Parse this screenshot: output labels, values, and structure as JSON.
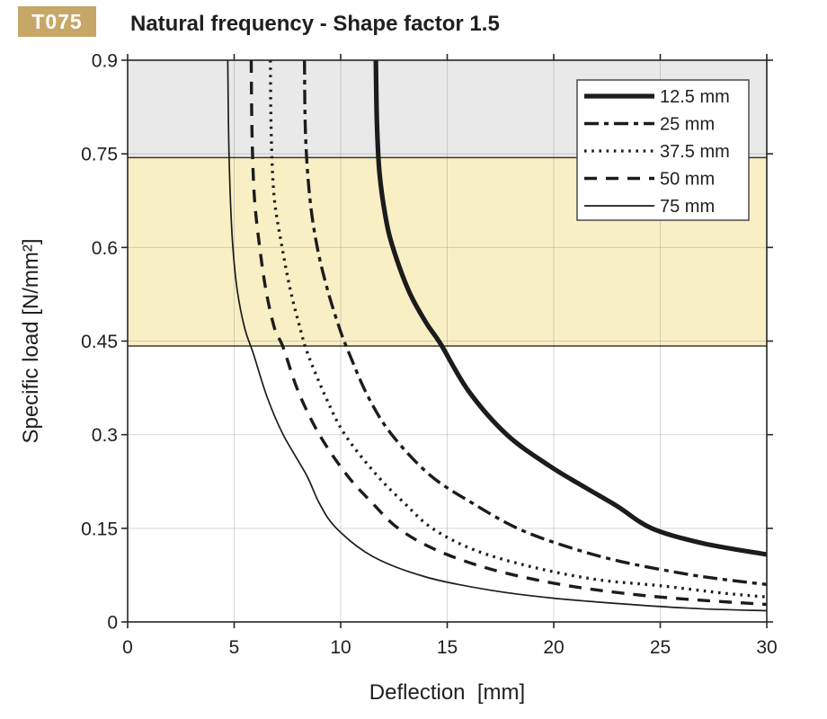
{
  "page": {
    "badge": "T075",
    "badge_color": "#c7a767",
    "title": "Natural frequency - Shape factor 1.5"
  },
  "chart_data": {
    "type": "line",
    "title": "Natural frequency - Shape factor 1.5",
    "xlabel": "Deflection  [mm]",
    "ylabel": "Specific load [N/mm²]",
    "xlim": [
      0,
      30
    ],
    "ylim": [
      0,
      0.9
    ],
    "grid": true,
    "legend_position": "top-right",
    "line_color": "#1c1c1c",
    "x_ticks": [
      0,
      5,
      10,
      15,
      20,
      25,
      30
    ],
    "x_tick_labels": [
      "0",
      "5",
      "10",
      "15",
      "20",
      "25",
      "30"
    ],
    "y_ticks": [
      0,
      0.15,
      0.3,
      0.45,
      0.6,
      0.75,
      0.9
    ],
    "y_tick_labels": [
      "0",
      "0.15",
      "0.3",
      "0.45",
      "0.6",
      "0.75",
      "0.9"
    ],
    "bands": [
      {
        "name": "upper-gray-zone",
        "from": 0.744,
        "to": 0.9,
        "color": "#e9e9e9",
        "opacity": 1
      },
      {
        "name": "recommended-load-range",
        "from": 0.442,
        "to": 0.744,
        "color": "#f9efc5",
        "opacity": 1
      }
    ],
    "band_boundary_lines": [
      0.744,
      0.442
    ],
    "series": [
      {
        "name": "12.5 mm",
        "style": "solid-thick",
        "points": [
          [
            11.65,
            0.9
          ],
          [
            11.7,
            0.8
          ],
          [
            11.82,
            0.72
          ],
          [
            12.1,
            0.65
          ],
          [
            12.45,
            0.6
          ],
          [
            13.2,
            0.53
          ],
          [
            14.0,
            0.48
          ],
          [
            14.7,
            0.445
          ],
          [
            16.0,
            0.37
          ],
          [
            17.8,
            0.3
          ],
          [
            19.8,
            0.25
          ],
          [
            21.5,
            0.215
          ],
          [
            23.0,
            0.185
          ],
          [
            24.6,
            0.15
          ],
          [
            27.0,
            0.126
          ],
          [
            30.0,
            0.108
          ]
        ]
      },
      {
        "name": "25 mm",
        "style": "dashdot",
        "points": [
          [
            8.3,
            0.9
          ],
          [
            8.35,
            0.78
          ],
          [
            8.55,
            0.68
          ],
          [
            8.9,
            0.6
          ],
          [
            9.4,
            0.53
          ],
          [
            9.95,
            0.47
          ],
          [
            10.4,
            0.43
          ],
          [
            11.3,
            0.36
          ],
          [
            12.4,
            0.3
          ],
          [
            14.2,
            0.235
          ],
          [
            16.2,
            0.19
          ],
          [
            18.3,
            0.15
          ],
          [
            20.5,
            0.122
          ],
          [
            23.0,
            0.098
          ],
          [
            26.0,
            0.078
          ],
          [
            28.0,
            0.068
          ],
          [
            30.0,
            0.06
          ]
        ]
      },
      {
        "name": "37.5 mm",
        "style": "dotted",
        "points": [
          [
            6.7,
            0.9
          ],
          [
            6.74,
            0.78
          ],
          [
            6.88,
            0.68
          ],
          [
            7.25,
            0.6
          ],
          [
            7.65,
            0.53
          ],
          [
            8.1,
            0.47
          ],
          [
            8.45,
            0.43
          ],
          [
            9.3,
            0.36
          ],
          [
            10.2,
            0.3
          ],
          [
            11.7,
            0.235
          ],
          [
            13.0,
            0.19
          ],
          [
            14.3,
            0.15
          ],
          [
            16.3,
            0.115
          ],
          [
            19.0,
            0.088
          ],
          [
            22.0,
            0.068
          ],
          [
            25.0,
            0.058
          ],
          [
            28.0,
            0.046
          ],
          [
            30.0,
            0.04
          ]
        ]
      },
      {
        "name": "50 mm",
        "style": "dashed",
        "points": [
          [
            5.8,
            0.9
          ],
          [
            5.84,
            0.78
          ],
          [
            5.95,
            0.68
          ],
          [
            6.2,
            0.6
          ],
          [
            6.5,
            0.53
          ],
          [
            6.9,
            0.47
          ],
          [
            7.3,
            0.44
          ],
          [
            8.0,
            0.37
          ],
          [
            9.0,
            0.3
          ],
          [
            10.3,
            0.235
          ],
          [
            11.5,
            0.19
          ],
          [
            12.7,
            0.15
          ],
          [
            14.5,
            0.115
          ],
          [
            17.0,
            0.085
          ],
          [
            20.0,
            0.062
          ],
          [
            23.0,
            0.047
          ],
          [
            26.0,
            0.037
          ],
          [
            30.0,
            0.028
          ]
        ]
      },
      {
        "name": "75 mm",
        "style": "solid-thin",
        "points": [
          [
            4.7,
            0.9
          ],
          [
            4.74,
            0.78
          ],
          [
            4.82,
            0.68
          ],
          [
            4.94,
            0.6
          ],
          [
            5.15,
            0.53
          ],
          [
            5.5,
            0.47
          ],
          [
            5.9,
            0.43
          ],
          [
            6.55,
            0.36
          ],
          [
            7.3,
            0.3
          ],
          [
            8.4,
            0.235
          ],
          [
            9.0,
            0.19
          ],
          [
            9.8,
            0.15
          ],
          [
            11.5,
            0.105
          ],
          [
            14.0,
            0.072
          ],
          [
            17.0,
            0.051
          ],
          [
            20.0,
            0.038
          ],
          [
            24.0,
            0.027
          ],
          [
            27.0,
            0.021
          ],
          [
            30.0,
            0.018
          ]
        ]
      }
    ]
  }
}
